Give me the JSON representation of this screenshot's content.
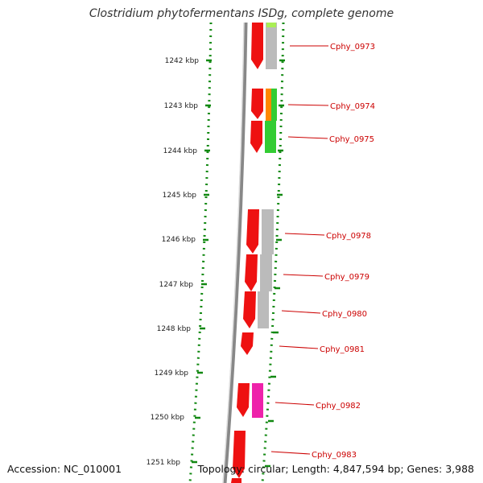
{
  "header": {
    "title": "Clostridium phytofermentans ISDg, complete genome"
  },
  "footer": {
    "accession": "Accession: NC_010001",
    "summary": "Topology: circular; Length: 4,847,594 bp; Genes: 3,988"
  },
  "colors": {
    "cds": "#ee1111",
    "gray": "#bbbbbb",
    "light_green": "#aaee55",
    "orange": "#ff8800",
    "green": "#33cc33",
    "magenta": "#ee22aa",
    "tick_green": "#118811",
    "label_red": "#cc0000"
  },
  "position_labels": [
    "1242 kbp",
    "1243 kbp",
    "1244 kbp",
    "1245 kbp",
    "1246 kbp",
    "1247 kbp",
    "1248 kbp",
    "1249 kbp",
    "1250 kbp",
    "1251 kbp"
  ],
  "gene_labels": [
    "Cphy_0973",
    "Cphy_0974",
    "Cphy_0975",
    "Cphy_0978",
    "Cphy_0979",
    "Cphy_0980",
    "Cphy_0981",
    "Cphy_0982",
    "Cphy_0983"
  ]
}
